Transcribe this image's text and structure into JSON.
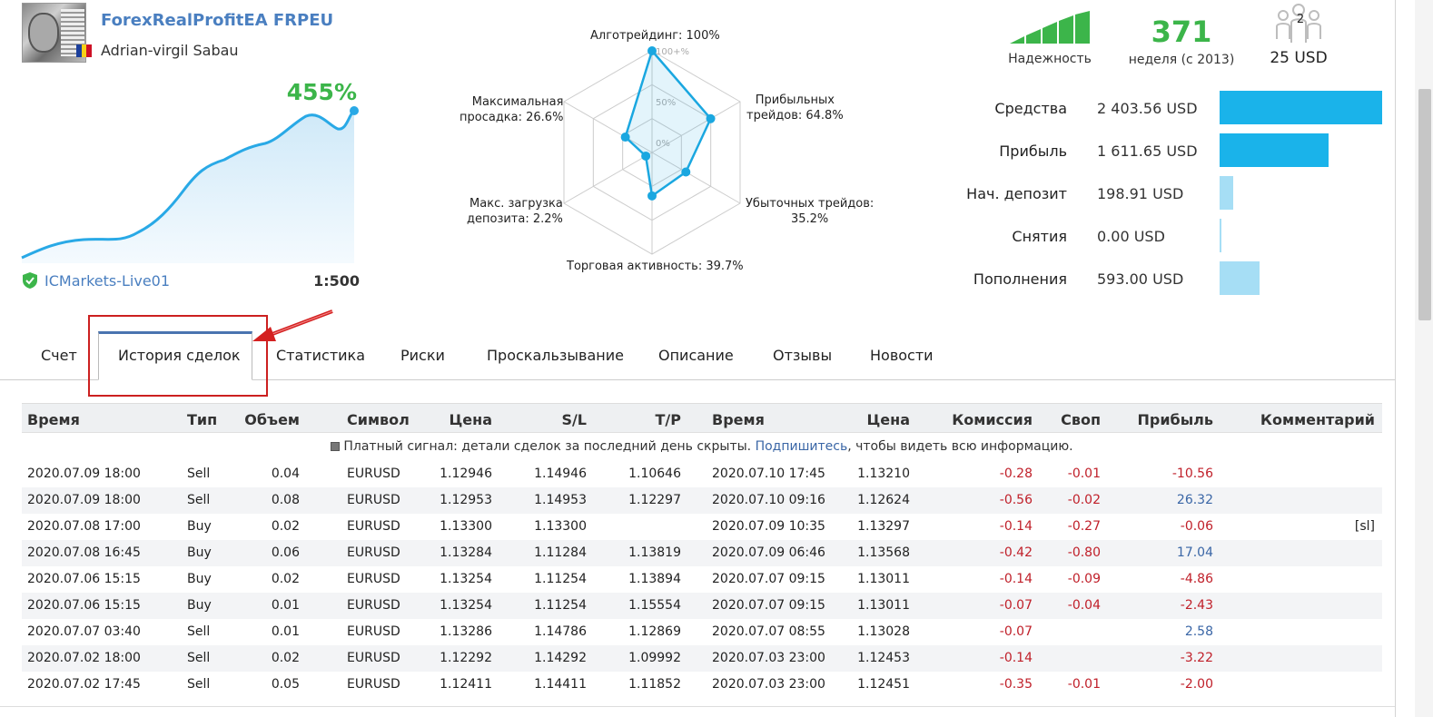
{
  "signal": {
    "title": "ForexRealProfitEA FRPEU",
    "author": "Adrian-virgil Sabau",
    "gain": "455%",
    "broker": "ICMarkets-Live01",
    "leverage": "1:500"
  },
  "radar": {
    "labels": {
      "algo": "Алготрейдинг: 100%",
      "profit": "Прибыльных трейдов: 64.8%",
      "loss": "Убыточных трейдов: 35.2%",
      "activity": "Торговая активность: 39.7%",
      "load": "Макс. загрузка депозита: 2.2%",
      "drawdown": "Максимальная просадка: 26.6%"
    },
    "label_lines": {
      "profit": [
        "Прибыльных",
        "трейдов: 64.8%"
      ],
      "loss": [
        "Убыточных трейдов:",
        "35.2%"
      ],
      "load": [
        "Макс. загрузка",
        "депозита: 2.2%"
      ],
      "drawdown": [
        "Максимальная",
        "просадка: 26.6%"
      ]
    },
    "scale_labels": [
      "100+%",
      "50%",
      "0%"
    ],
    "values": [
      100,
      64.8,
      35.2,
      39.7,
      2.2,
      26.6
    ],
    "color": "#1aa7e0"
  },
  "stats": {
    "reliability_label": "Надежность",
    "reliability_bars_filled": 5,
    "reliability_bars_total": 5,
    "weeks": "371",
    "weeks_label": "неделя (с 2013)",
    "subscribers": "2",
    "price": "25 USD"
  },
  "financials": [
    {
      "label": "Средства",
      "value": "2 403.56 USD",
      "amount": 2403.56,
      "color": "#1ab3ea"
    },
    {
      "label": "Прибыль",
      "value": "1 611.65 USD",
      "amount": 1611.65,
      "color": "#1ab3ea"
    },
    {
      "label": "Нач. депозит",
      "value": "198.91 USD",
      "amount": 198.91,
      "color": "#a6def5"
    },
    {
      "label": "Снятия",
      "value": "0.00 USD",
      "amount": 0,
      "color": "#a6def5"
    },
    {
      "label": "Пополнения",
      "value": "593.00 USD",
      "amount": 593.0,
      "color": "#a6def5"
    }
  ],
  "tabs": [
    "Счет",
    "История сделок",
    "Статистика",
    "Риски",
    "Проскальзывание",
    "Описание",
    "Отзывы",
    "Новости"
  ],
  "active_tab": "История сделок",
  "table": {
    "headers": [
      "Время",
      "Тип",
      "Объем",
      "Символ",
      "Цена",
      "S/L",
      "T/P",
      "Время",
      "Цена",
      "Комиссия",
      "Своп",
      "Прибыль",
      "Комментарий"
    ],
    "notice_before": "Платный сигнал: детали сделок за последний день скрыты.",
    "notice_link": "Подпишитесь",
    "notice_after": ", чтобы видеть всю информацию.",
    "rows": [
      [
        "2020.07.09 18:00",
        "Sell",
        "0.04",
        "EURUSD",
        "1.12946",
        "1.14946",
        "1.10646",
        "2020.07.10 17:45",
        "1.13210",
        "-0.28",
        "-0.01",
        "-10.56",
        ""
      ],
      [
        "2020.07.09 18:00",
        "Sell",
        "0.08",
        "EURUSD",
        "1.12953",
        "1.14953",
        "1.12297",
        "2020.07.10 09:16",
        "1.12624",
        "-0.56",
        "-0.02",
        "26.32",
        ""
      ],
      [
        "2020.07.08 17:00",
        "Buy",
        "0.02",
        "EURUSD",
        "1.13300",
        "1.13300",
        "",
        "2020.07.09 10:35",
        "1.13297",
        "-0.14",
        "-0.27",
        "-0.06",
        "[sl]"
      ],
      [
        "2020.07.08 16:45",
        "Buy",
        "0.06",
        "EURUSD",
        "1.13284",
        "1.11284",
        "1.13819",
        "2020.07.09 06:46",
        "1.13568",
        "-0.42",
        "-0.80",
        "17.04",
        ""
      ],
      [
        "2020.07.06 15:15",
        "Buy",
        "0.02",
        "EURUSD",
        "1.13254",
        "1.11254",
        "1.13894",
        "2020.07.07 09:15",
        "1.13011",
        "-0.14",
        "-0.09",
        "-4.86",
        ""
      ],
      [
        "2020.07.06 15:15",
        "Buy",
        "0.01",
        "EURUSD",
        "1.13254",
        "1.11254",
        "1.15554",
        "2020.07.07 09:15",
        "1.13011",
        "-0.07",
        "-0.04",
        "-2.43",
        ""
      ],
      [
        "2020.07.07 03:40",
        "Sell",
        "0.01",
        "EURUSD",
        "1.13286",
        "1.14786",
        "1.12869",
        "2020.07.07 08:55",
        "1.13028",
        "-0.07",
        "",
        "2.58",
        ""
      ],
      [
        "2020.07.02 18:00",
        "Sell",
        "0.02",
        "EURUSD",
        "1.12292",
        "1.14292",
        "1.09992",
        "2020.07.03 23:00",
        "1.12453",
        "-0.14",
        "",
        "-3.22",
        ""
      ],
      [
        "2020.07.02 17:45",
        "Sell",
        "0.05",
        "EURUSD",
        "1.12411",
        "1.14411",
        "1.11852",
        "2020.07.03 23:00",
        "1.12451",
        "-0.35",
        "-0.01",
        "-2.00",
        ""
      ]
    ]
  },
  "colors": {
    "accent_green": "#3cb54a",
    "link_blue": "#4a7fc0",
    "negative_red": "#c0202a",
    "positive_blue": "#3a66a6",
    "highlight_red": "#cc2020"
  }
}
